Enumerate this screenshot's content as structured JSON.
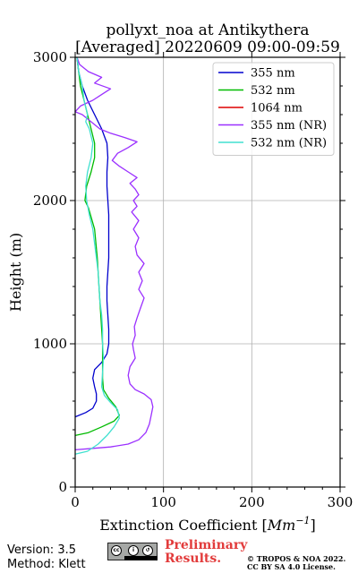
{
  "chart_data": {
    "type": "line",
    "title": "pollyxt_noa at Antikythera",
    "subtitle": "[Averaged] 20220609 09:00-09:59",
    "xlabel": "Extinction Coefficient [Mm⁻¹]",
    "xlabel_base": "Extinction Coefficient [",
    "xlabel_unit": "Mm",
    "xlabel_exp": "−1",
    "xlabel_end": "]",
    "ylabel": "Height (m)",
    "xlim": [
      0,
      300
    ],
    "ylim": [
      0,
      3000
    ],
    "xticks": [
      "0",
      "100",
      "200",
      "300"
    ],
    "yticks": [
      "0",
      "1000",
      "2000",
      "3000"
    ],
    "grid": true,
    "legend_position": "top-right",
    "series": [
      {
        "name": "355 nm",
        "color": "#0000cd",
        "points": [
          [
            0,
            490
          ],
          [
            12,
            520
          ],
          [
            20,
            550
          ],
          [
            24,
            600
          ],
          [
            24,
            650
          ],
          [
            22,
            700
          ],
          [
            20,
            760
          ],
          [
            22,
            820
          ],
          [
            30,
            870
          ],
          [
            36,
            930
          ],
          [
            38,
            1000
          ],
          [
            38,
            1100
          ],
          [
            37,
            1200
          ],
          [
            36,
            1300
          ],
          [
            36,
            1400
          ],
          [
            37,
            1500
          ],
          [
            38,
            1600
          ],
          [
            38,
            1700
          ],
          [
            38,
            1800
          ],
          [
            38,
            1900
          ],
          [
            37,
            2000
          ],
          [
            36,
            2100
          ],
          [
            36,
            2200
          ],
          [
            37,
            2300
          ],
          [
            36,
            2400
          ],
          [
            30,
            2500
          ],
          [
            22,
            2600
          ],
          [
            14,
            2700
          ],
          [
            8,
            2800
          ],
          [
            4,
            2900
          ],
          [
            2,
            3000
          ]
        ]
      },
      {
        "name": "532 nm",
        "color": "#00bb00",
        "points": [
          [
            0,
            360
          ],
          [
            15,
            380
          ],
          [
            30,
            420
          ],
          [
            44,
            460
          ],
          [
            50,
            500
          ],
          [
            46,
            560
          ],
          [
            38,
            620
          ],
          [
            32,
            680
          ],
          [
            31,
            760
          ],
          [
            31,
            850
          ],
          [
            31,
            1000
          ],
          [
            30,
            1100
          ],
          [
            29,
            1200
          ],
          [
            27,
            1400
          ],
          [
            25,
            1600
          ],
          [
            22,
            1800
          ],
          [
            15,
            1950
          ],
          [
            11,
            2000
          ],
          [
            13,
            2100
          ],
          [
            18,
            2200
          ],
          [
            22,
            2300
          ],
          [
            22,
            2400
          ],
          [
            18,
            2500
          ],
          [
            14,
            2600
          ],
          [
            10,
            2700
          ],
          [
            6,
            2800
          ],
          [
            4,
            2900
          ],
          [
            2,
            3000
          ]
        ]
      },
      {
        "name": "1064 nm",
        "color": "#dd0000",
        "points": []
      },
      {
        "name": "355 nm (NR)",
        "color": "#9b30ff",
        "points": [
          [
            0,
            260
          ],
          [
            20,
            270
          ],
          [
            40,
            280
          ],
          [
            60,
            300
          ],
          [
            72,
            330
          ],
          [
            80,
            380
          ],
          [
            84,
            440
          ],
          [
            86,
            500
          ],
          [
            88,
            560
          ],
          [
            86,
            610
          ],
          [
            78,
            650
          ],
          [
            68,
            680
          ],
          [
            62,
            720
          ],
          [
            60,
            780
          ],
          [
            62,
            840
          ],
          [
            68,
            900
          ],
          [
            66,
            960
          ],
          [
            65,
            1000
          ],
          [
            68,
            1060
          ],
          [
            67,
            1120
          ],
          [
            70,
            1180
          ],
          [
            74,
            1250
          ],
          [
            78,
            1320
          ],
          [
            72,
            1380
          ],
          [
            76,
            1440
          ],
          [
            72,
            1500
          ],
          [
            78,
            1560
          ],
          [
            70,
            1620
          ],
          [
            68,
            1680
          ],
          [
            72,
            1740
          ],
          [
            66,
            1800
          ],
          [
            72,
            1860
          ],
          [
            64,
            1920
          ],
          [
            70,
            1960
          ],
          [
            66,
            2000
          ],
          [
            72,
            2040
          ],
          [
            68,
            2080
          ],
          [
            62,
            2120
          ],
          [
            70,
            2160
          ],
          [
            60,
            2200
          ],
          [
            50,
            2240
          ],
          [
            42,
            2280
          ],
          [
            48,
            2330
          ],
          [
            60,
            2370
          ],
          [
            70,
            2410
          ],
          [
            56,
            2440
          ],
          [
            40,
            2470
          ],
          [
            28,
            2500
          ],
          [
            18,
            2550
          ],
          [
            8,
            2600
          ],
          [
            0,
            2620
          ],
          [
            6,
            2660
          ],
          [
            20,
            2700
          ],
          [
            30,
            2740
          ],
          [
            40,
            2780
          ],
          [
            22,
            2820
          ],
          [
            30,
            2860
          ],
          [
            15,
            2900
          ],
          [
            5,
            2950
          ],
          [
            2,
            3000
          ]
        ]
      },
      {
        "name": "532 nm (NR)",
        "color": "#40e0d0",
        "points": [
          [
            0,
            230
          ],
          [
            14,
            250
          ],
          [
            26,
            300
          ],
          [
            36,
            360
          ],
          [
            44,
            420
          ],
          [
            50,
            480
          ],
          [
            48,
            540
          ],
          [
            40,
            590
          ],
          [
            33,
            640
          ],
          [
            30,
            700
          ],
          [
            31,
            800
          ],
          [
            32,
            900
          ],
          [
            31,
            1000
          ],
          [
            31,
            1100
          ],
          [
            30,
            1200
          ],
          [
            28,
            1300
          ],
          [
            27,
            1400
          ],
          [
            26,
            1500
          ],
          [
            24,
            1600
          ],
          [
            22,
            1700
          ],
          [
            20,
            1800
          ],
          [
            16,
            1900
          ],
          [
            13,
            2000
          ],
          [
            12,
            2100
          ],
          [
            14,
            2200
          ],
          [
            18,
            2300
          ],
          [
            20,
            2400
          ],
          [
            16,
            2500
          ],
          [
            12,
            2550
          ],
          [
            14,
            2600
          ],
          [
            10,
            2700
          ],
          [
            8,
            2800
          ],
          [
            4,
            2900
          ],
          [
            2,
            3000
          ]
        ]
      }
    ]
  },
  "footer": {
    "version": "Version: 3.5",
    "method": "Method: Klett",
    "preliminary_line1": "Preliminary",
    "preliminary_line2": "Results.",
    "copyright_line1": "© TROPOS & NOA 2022.",
    "copyright_line2": "CC BY SA 4.0 License.",
    "license_badge_text": "BY SA"
  }
}
